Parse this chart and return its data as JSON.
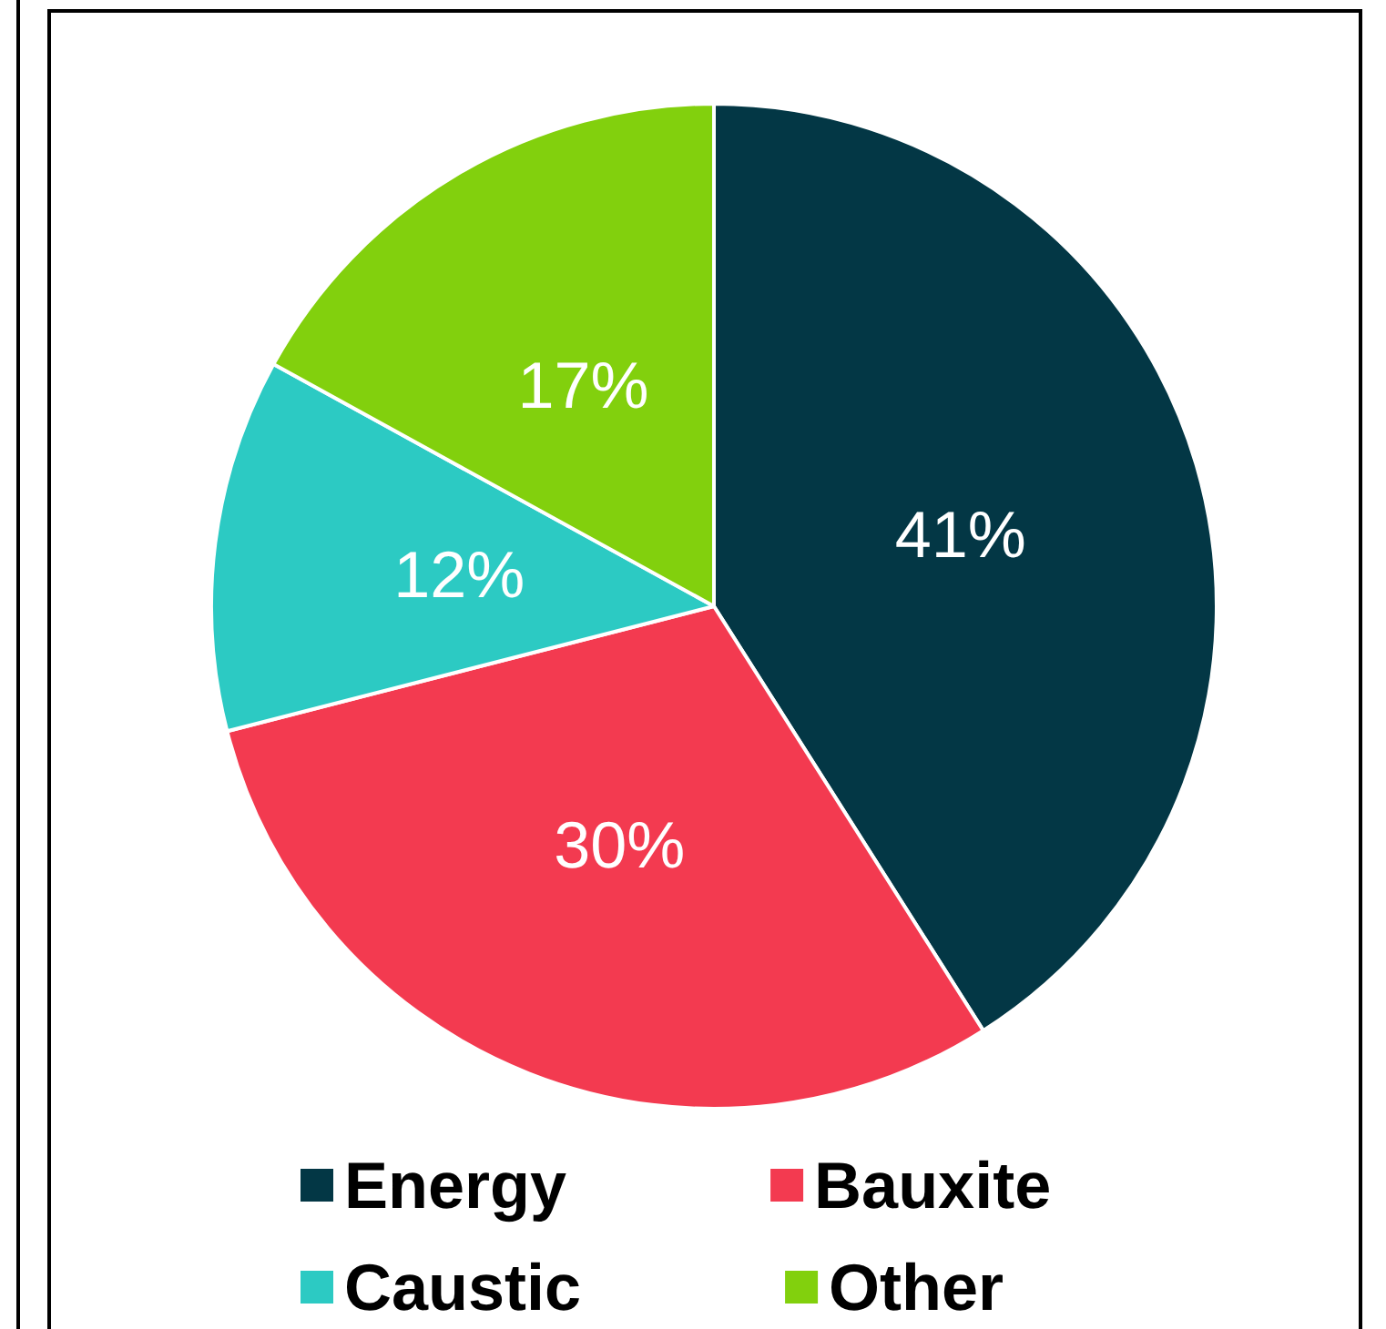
{
  "chart_data": {
    "type": "pie",
    "categories": [
      "Energy",
      "Bauxite",
      "Caustic",
      "Other"
    ],
    "values": [
      41,
      30,
      12,
      17
    ],
    "colors": [
      "#033745",
      "#f33a50",
      "#2ccac3",
      "#82d00d"
    ],
    "value_labels": [
      "41%",
      "30%",
      "12%",
      "17%"
    ],
    "legend": "bottom"
  }
}
